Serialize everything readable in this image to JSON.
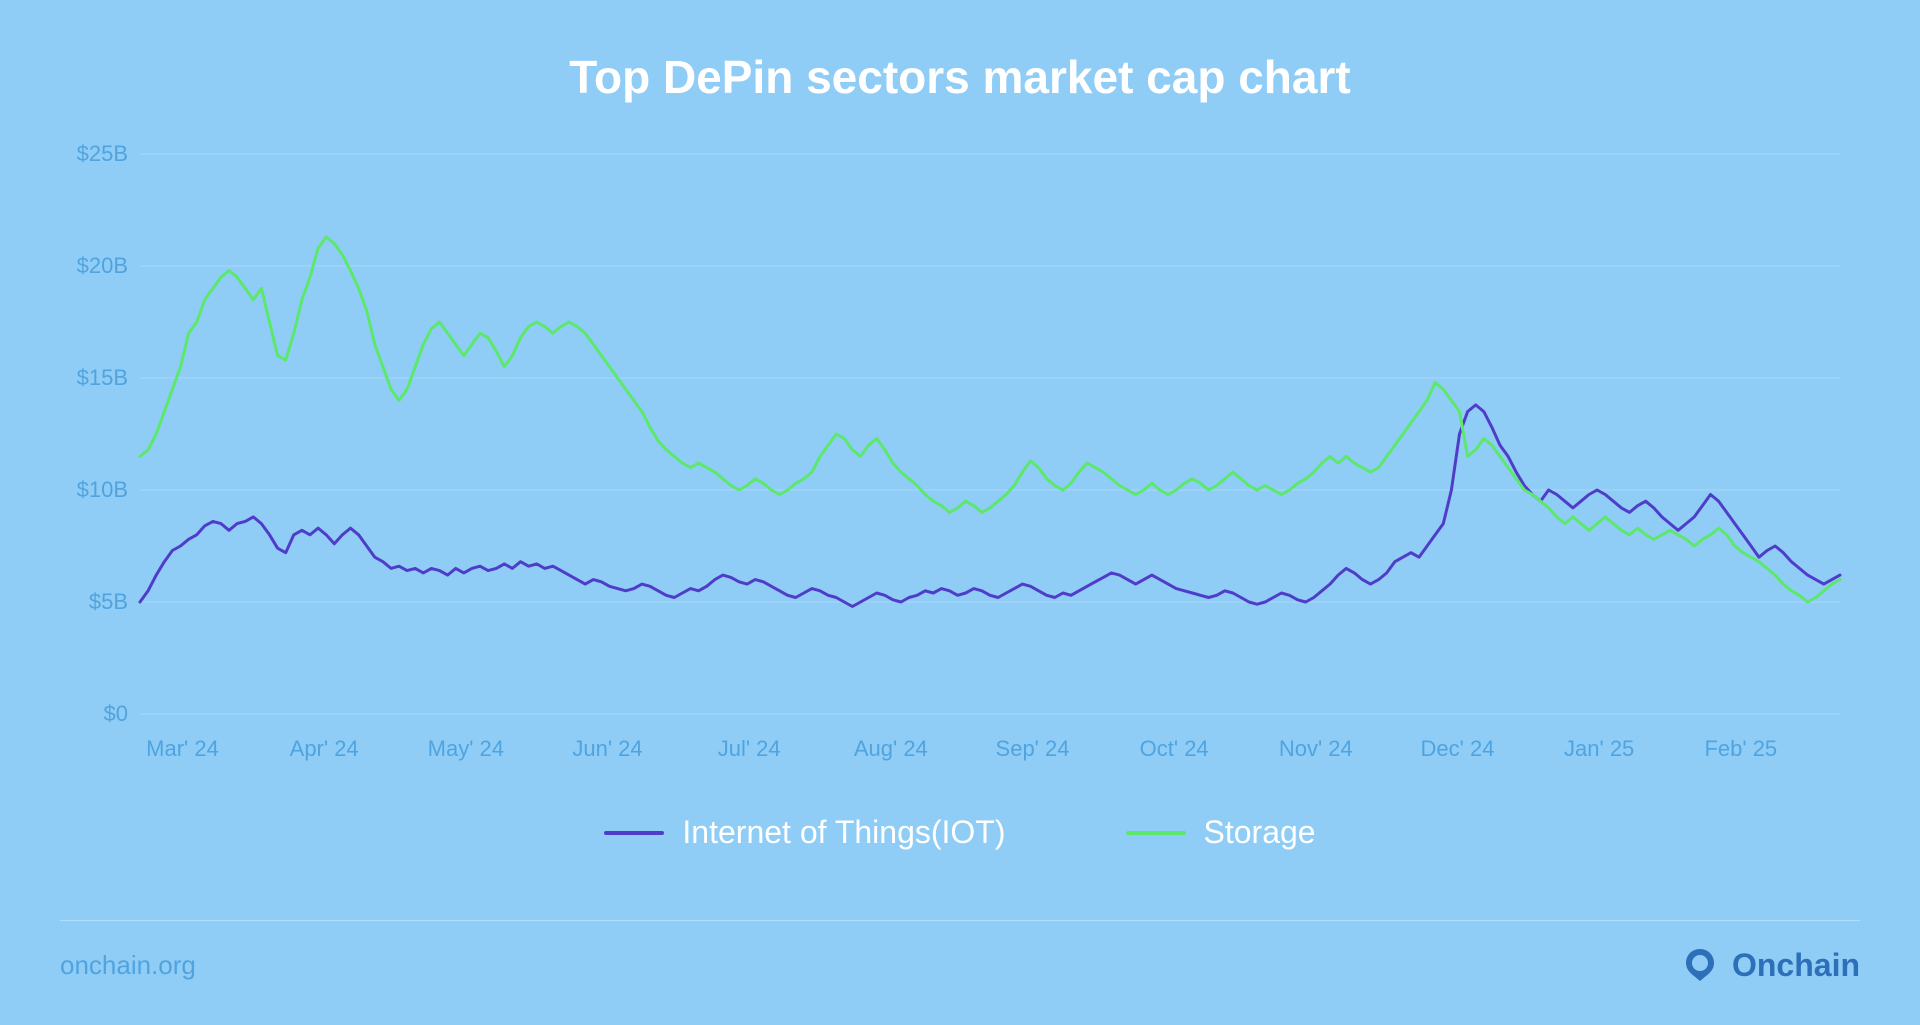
{
  "title": "Top DePin sectors market cap chart",
  "footer_text": "onchain.org",
  "brand_name": "Onchain",
  "background_color": "#8fcdf7",
  "title_color": "#ffffff",
  "title_fontsize": 46,
  "label_color": "#4fa4e0",
  "label_fontsize": 22,
  "legend_fontsize": 32,
  "grid_color": "#a9d8f8",
  "brand_color": "#2d6fb8",
  "chart": {
    "type": "line",
    "ylim": [
      0,
      25
    ],
    "y_unit": "B",
    "y_prefix": "$",
    "yticks": [
      0,
      5,
      10,
      15,
      20,
      25
    ],
    "ytick_labels": [
      "$0",
      "$5B",
      "$10B",
      "$15B",
      "$20B",
      "$25B"
    ],
    "x_labels": [
      "Mar' 24",
      "Apr' 24",
      "May' 24",
      "Jun' 24",
      "Jul' 24",
      "Aug' 24",
      "Sep' 24",
      "Oct' 24",
      "Nov' 24",
      "Dec' 24",
      "Jan' 25",
      "Feb' 25"
    ],
    "line_width": 3,
    "series": [
      {
        "name": "Internet of Things(IOT)",
        "color": "#4f3dc9",
        "values": [
          5.0,
          5.5,
          6.2,
          6.8,
          7.3,
          7.5,
          7.8,
          8.0,
          8.4,
          8.6,
          8.5,
          8.2,
          8.5,
          8.6,
          8.8,
          8.5,
          8.0,
          7.4,
          7.2,
          8.0,
          8.2,
          8.0,
          8.3,
          8.0,
          7.6,
          8.0,
          8.3,
          8.0,
          7.5,
          7.0,
          6.8,
          6.5,
          6.6,
          6.4,
          6.5,
          6.3,
          6.5,
          6.4,
          6.2,
          6.5,
          6.3,
          6.5,
          6.6,
          6.4,
          6.5,
          6.7,
          6.5,
          6.8,
          6.6,
          6.7,
          6.5,
          6.6,
          6.4,
          6.2,
          6.0,
          5.8,
          6.0,
          5.9,
          5.7,
          5.6,
          5.5,
          5.6,
          5.8,
          5.7,
          5.5,
          5.3,
          5.2,
          5.4,
          5.6,
          5.5,
          5.7,
          6.0,
          6.2,
          6.1,
          5.9,
          5.8,
          6.0,
          5.9,
          5.7,
          5.5,
          5.3,
          5.2,
          5.4,
          5.6,
          5.5,
          5.3,
          5.2,
          5.0,
          4.8,
          5.0,
          5.2,
          5.4,
          5.3,
          5.1,
          5.0,
          5.2,
          5.3,
          5.5,
          5.4,
          5.6,
          5.5,
          5.3,
          5.4,
          5.6,
          5.5,
          5.3,
          5.2,
          5.4,
          5.6,
          5.8,
          5.7,
          5.5,
          5.3,
          5.2,
          5.4,
          5.3,
          5.5,
          5.7,
          5.9,
          6.1,
          6.3,
          6.2,
          6.0,
          5.8,
          6.0,
          6.2,
          6.0,
          5.8,
          5.6,
          5.5,
          5.4,
          5.3,
          5.2,
          5.3,
          5.5,
          5.4,
          5.2,
          5.0,
          4.9,
          5.0,
          5.2,
          5.4,
          5.3,
          5.1,
          5.0,
          5.2,
          5.5,
          5.8,
          6.2,
          6.5,
          6.3,
          6.0,
          5.8,
          6.0,
          6.3,
          6.8,
          7.0,
          7.2,
          7.0,
          7.5,
          8.0,
          8.5,
          10.0,
          12.5,
          13.5,
          13.8,
          13.5,
          12.8,
          12.0,
          11.5,
          10.8,
          10.2,
          9.8,
          9.5,
          10.0,
          9.8,
          9.5,
          9.2,
          9.5,
          9.8,
          10.0,
          9.8,
          9.5,
          9.2,
          9.0,
          9.3,
          9.5,
          9.2,
          8.8,
          8.5,
          8.2,
          8.5,
          8.8,
          9.3,
          9.8,
          9.5,
          9.0,
          8.5,
          8.0,
          7.5,
          7.0,
          7.3,
          7.5,
          7.2,
          6.8,
          6.5,
          6.2,
          6.0,
          5.8,
          6.0,
          6.2
        ]
      },
      {
        "name": "Storage",
        "color": "#5ce86a",
        "values": [
          11.5,
          11.8,
          12.5,
          13.5,
          14.5,
          15.5,
          17.0,
          17.5,
          18.5,
          19.0,
          19.5,
          19.8,
          19.5,
          19.0,
          18.5,
          19.0,
          17.5,
          16.0,
          15.8,
          17.0,
          18.5,
          19.5,
          20.8,
          21.3,
          21.0,
          20.5,
          19.8,
          19.0,
          18.0,
          16.5,
          15.5,
          14.5,
          14.0,
          14.5,
          15.5,
          16.5,
          17.2,
          17.5,
          17.0,
          16.5,
          16.0,
          16.5,
          17.0,
          16.8,
          16.2,
          15.5,
          16.0,
          16.8,
          17.3,
          17.5,
          17.3,
          17.0,
          17.3,
          17.5,
          17.3,
          17.0,
          16.5,
          16.0,
          15.5,
          15.0,
          14.5,
          14.0,
          13.5,
          12.8,
          12.2,
          11.8,
          11.5,
          11.2,
          11.0,
          11.2,
          11.0,
          10.8,
          10.5,
          10.2,
          10.0,
          10.2,
          10.5,
          10.3,
          10.0,
          9.8,
          10.0,
          10.3,
          10.5,
          10.8,
          11.5,
          12.0,
          12.5,
          12.3,
          11.8,
          11.5,
          12.0,
          12.3,
          11.8,
          11.2,
          10.8,
          10.5,
          10.2,
          9.8,
          9.5,
          9.3,
          9.0,
          9.2,
          9.5,
          9.3,
          9.0,
          9.2,
          9.5,
          9.8,
          10.2,
          10.8,
          11.3,
          11.0,
          10.5,
          10.2,
          10.0,
          10.3,
          10.8,
          11.2,
          11.0,
          10.8,
          10.5,
          10.2,
          10.0,
          9.8,
          10.0,
          10.3,
          10.0,
          9.8,
          10.0,
          10.3,
          10.5,
          10.3,
          10.0,
          10.2,
          10.5,
          10.8,
          10.5,
          10.2,
          10.0,
          10.2,
          10.0,
          9.8,
          10.0,
          10.3,
          10.5,
          10.8,
          11.2,
          11.5,
          11.2,
          11.5,
          11.2,
          11.0,
          10.8,
          11.0,
          11.5,
          12.0,
          12.5,
          13.0,
          13.5,
          14.0,
          14.8,
          14.5,
          14.0,
          13.5,
          11.5,
          11.8,
          12.3,
          12.0,
          11.5,
          11.0,
          10.5,
          10.0,
          9.8,
          9.5,
          9.2,
          8.8,
          8.5,
          8.8,
          8.5,
          8.2,
          8.5,
          8.8,
          8.5,
          8.2,
          8.0,
          8.3,
          8.0,
          7.8,
          8.0,
          8.2,
          8.0,
          7.8,
          7.5,
          7.8,
          8.0,
          8.3,
          8.0,
          7.5,
          7.2,
          7.0,
          6.8,
          6.5,
          6.2,
          5.8,
          5.5,
          5.3,
          5.0,
          5.2,
          5.5,
          5.8,
          6.0
        ]
      }
    ]
  }
}
